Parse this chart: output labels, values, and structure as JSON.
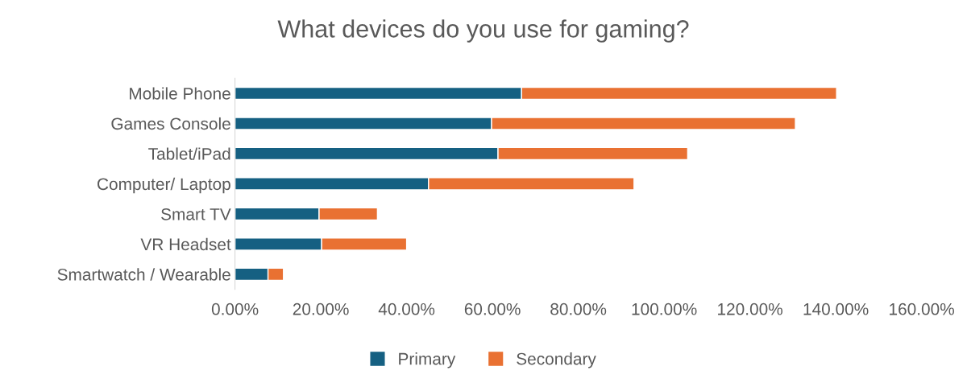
{
  "chart_data": {
    "type": "bar",
    "orientation": "horizontal",
    "stacked": true,
    "title": "What devices do you use for gaming?",
    "categories": [
      "Mobile Phone",
      "Games Console",
      "Tablet/iPad",
      "Computer/ Laptop",
      "Smart TV",
      "VR Headset",
      "Smartwatch / Wearable"
    ],
    "series": [
      {
        "name": "Primary",
        "color": "#156082",
        "values": [
          66.8,
          59.8,
          61.3,
          45.1,
          19.6,
          20.2,
          7.7
        ]
      },
      {
        "name": "Secondary",
        "color": "#e97132",
        "values": [
          73.4,
          70.8,
          44.2,
          47.9,
          13.6,
          19.8,
          3.6
        ]
      }
    ],
    "xlim": [
      0,
      160
    ],
    "xticks": [
      {
        "value": 0,
        "label": "0.00%"
      },
      {
        "value": 20,
        "label": "20.00%"
      },
      {
        "value": 40,
        "label": "40.00%"
      },
      {
        "value": 60,
        "label": "60.00%"
      },
      {
        "value": 80,
        "label": "80.00%"
      },
      {
        "value": 100,
        "label": "100.00%"
      },
      {
        "value": 120,
        "label": "120.00%"
      },
      {
        "value": 140,
        "label": "140.00%"
      },
      {
        "value": 160,
        "label": "160.00%"
      }
    ],
    "grid": false,
    "legend": "bottom"
  }
}
